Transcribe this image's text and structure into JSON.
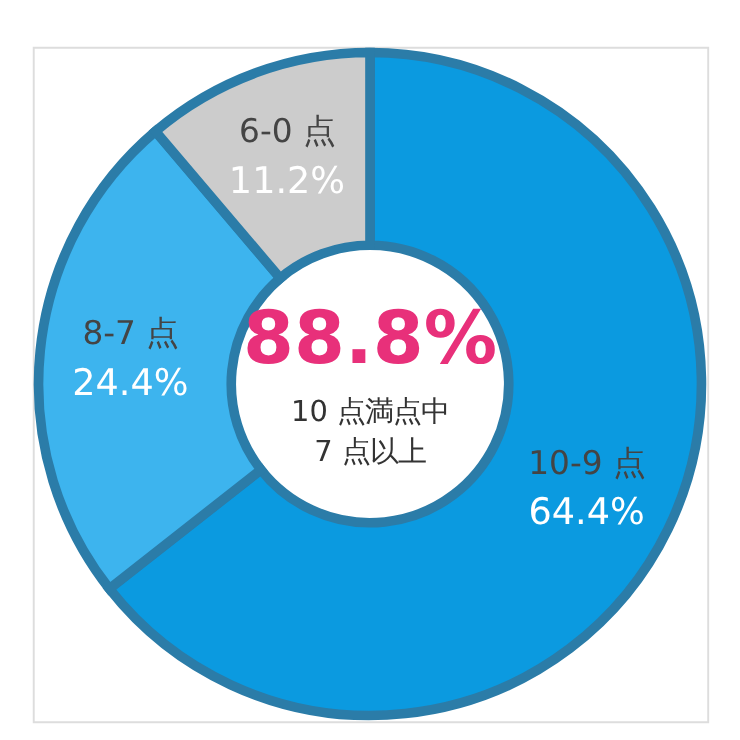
{
  "chart_data": {
    "type": "donut",
    "categories": [
      "10-9 点",
      "8-7 点",
      "6-0 点"
    ],
    "values": [
      64.4,
      24.4,
      11.2
    ],
    "value_labels": [
      "64.4%",
      "24.4%",
      "11.2%"
    ],
    "colors": [
      "#0b9ae0",
      "#3db4ee",
      "#cccccc"
    ],
    "legend": false,
    "annotations": [
      "88.8%",
      "10 点満点中",
      "7 点以上"
    ]
  }
}
